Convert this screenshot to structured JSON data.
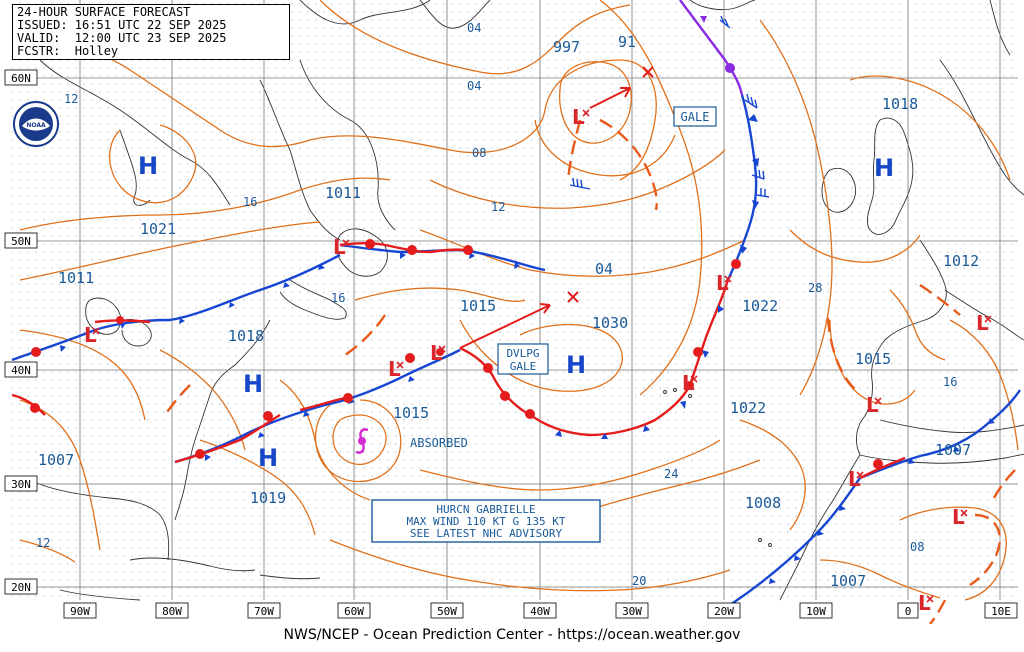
{
  "header": {
    "line1": "24-HOUR SURFACE FORECAST",
    "line2": "ISSUED: 16:51 UTC 22 SEP 2025",
    "line3": "VALID:  12:00 UTC 23 SEP 2025",
    "line4": "FCSTR:  Holley"
  },
  "footer": "NWS/NCEP - Ocean Prediction Center - https://ocean.weather.gov",
  "lat_labels": [
    "60N",
    "50N",
    "40N",
    "30N",
    "20N"
  ],
  "lon_labels": [
    "90W",
    "80W",
    "70W",
    "60W",
    "50W",
    "40W",
    "30W",
    "20W",
    "10W",
    "0",
    "10E"
  ],
  "pressure_centers": {
    "h_1021": {
      "sym": "H",
      "val": "1021"
    },
    "h_1018_west": {
      "sym": "H",
      "val": "1018"
    },
    "h_1019": {
      "sym": "H",
      "val": "1019"
    },
    "h_1030": {
      "sym": "H",
      "val": "1030"
    },
    "h_1018_east": {
      "sym": "H",
      "val": "1018"
    },
    "l_997": {
      "sym": "L",
      "val": "997"
    },
    "l_1011_nf": {
      "sym": "L",
      "val": "1011"
    },
    "l_1011_gl": {
      "sym": "L",
      "val": "1011"
    },
    "l_1015_a": {
      "sym": "L",
      "val": "1015"
    },
    "l_1015_b": {
      "sym": "L",
      "val": "1015"
    },
    "l_1022_a": {
      "sym": "L",
      "val": "1022"
    },
    "l_1022_b": {
      "sym": "L",
      "val": "1022"
    },
    "l_1012": {
      "sym": "L",
      "val": "1012"
    },
    "l_1015_ib": {
      "sym": "L",
      "val": "1015"
    },
    "l_1007_af": {
      "sym": "L",
      "val": "1007"
    },
    "l_1008": {
      "sym": "L",
      "val": "1008"
    },
    "l_1007_s": {
      "sym": "L",
      "val": "1007"
    },
    "l_1007_w": {
      "val": "1007"
    }
  },
  "isobar_labels": [
    "04",
    "04",
    "08",
    "12",
    "16",
    "12",
    "16",
    "04",
    "28",
    "16",
    "24",
    "20",
    "08",
    "12",
    "91"
  ],
  "annotations": {
    "gale1": "GALE",
    "dvlpg": "DVLPG",
    "gale2": "GALE",
    "absorbed": "ABSORBED",
    "hurcn_line1": "HURCN GABRIELLE",
    "hurcn_line2": "MAX WIND 110 KT G 135 KT",
    "hurcn_line3": "SEE LATEST NHC ADVISORY"
  },
  "logo_text": "NOAA",
  "colors": {
    "isobar": "#e0711c",
    "low": "#d8262b",
    "high": "#1747c8",
    "label": "#1a5a9a",
    "cold_front": "#1746d2",
    "warm_front": "#e41c1c",
    "occluded": "#8a2be2",
    "grid": "#777777",
    "coast": "#333333"
  }
}
